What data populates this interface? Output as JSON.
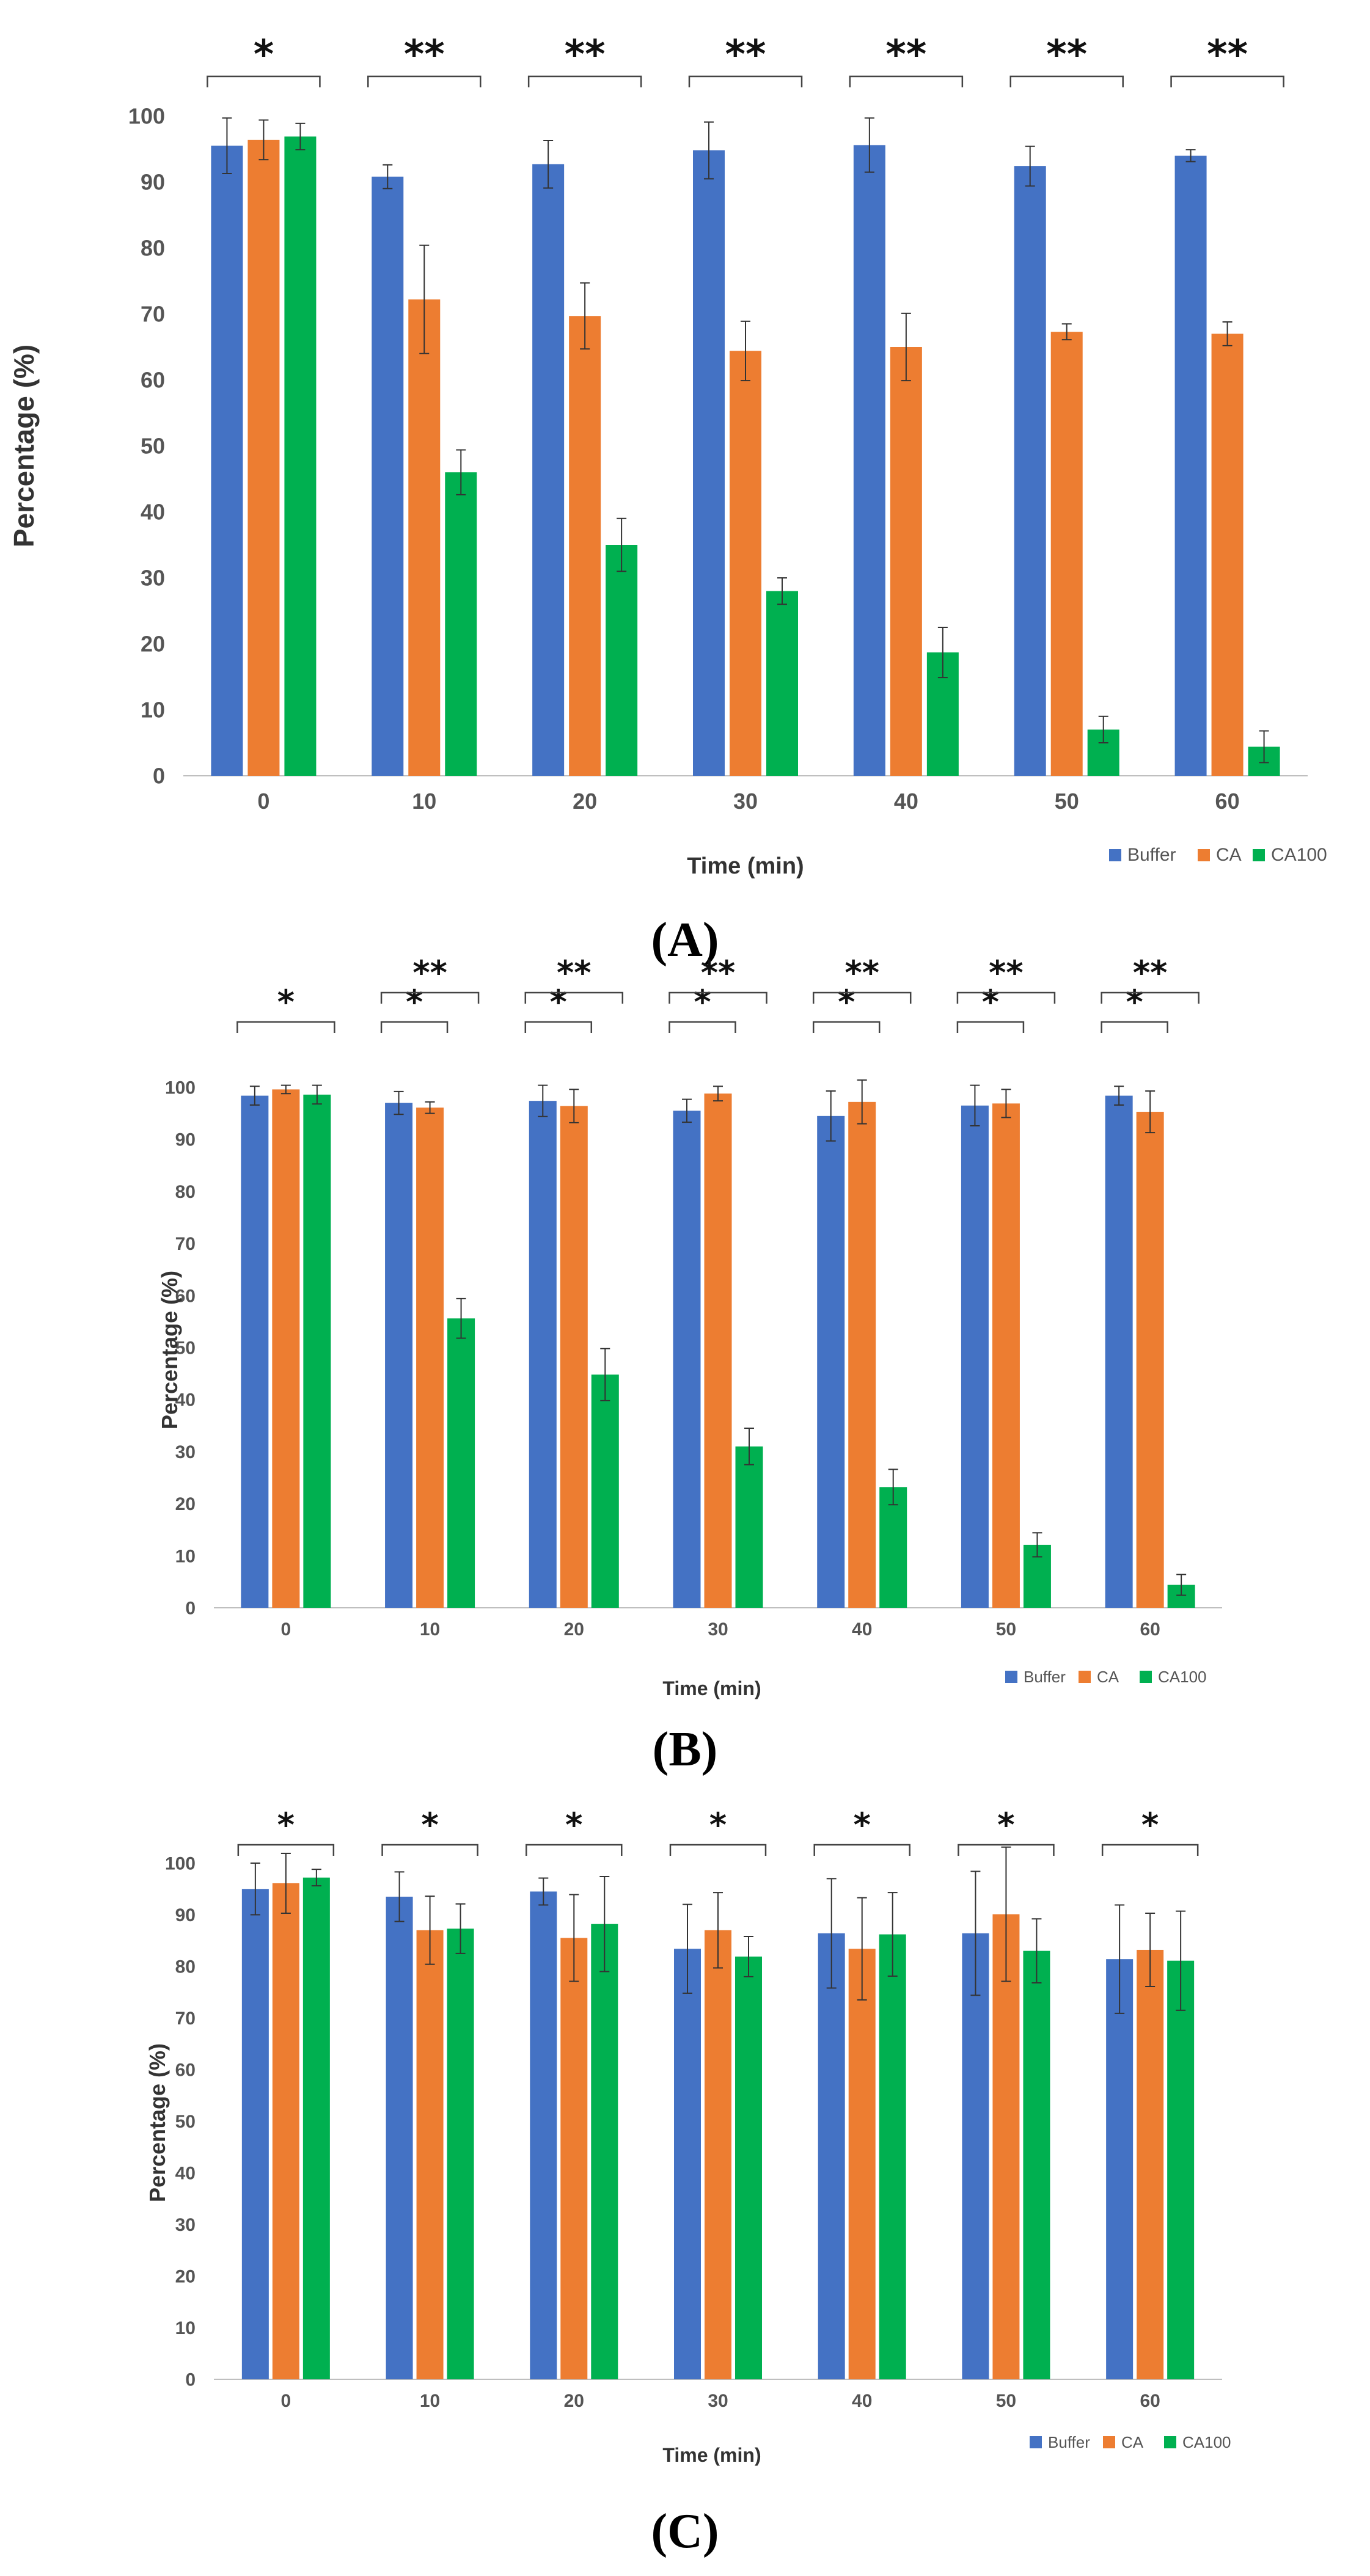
{
  "chart_data": [
    {
      "type": "bar",
      "panel_label": "(A)",
      "categories": [
        "0",
        "10",
        "20",
        "30",
        "40",
        "50",
        "60"
      ],
      "xlabel": "Time (min)",
      "ylabel": "Percentage (%)",
      "ylim": [
        0,
        100
      ],
      "yticks": [
        "0",
        "10",
        "20",
        "30",
        "40",
        "50",
        "60",
        "70",
        "80",
        "90",
        "100"
      ],
      "grid": false,
      "legend_position": "bottom-right",
      "series": [
        {
          "name": "Buffer",
          "color": "#4472C4",
          "values": [
            95.5,
            90.8,
            92.7,
            94.8,
            95.6,
            92.4,
            94.0
          ],
          "errors": [
            4.2,
            1.8,
            3.6,
            4.3,
            4.1,
            3.0,
            0.9
          ]
        },
        {
          "name": "CA",
          "color": "#ED7D31",
          "values": [
            96.4,
            72.2,
            69.7,
            64.4,
            65.0,
            67.3,
            67.0
          ],
          "errors": [
            3.0,
            8.2,
            5.0,
            4.5,
            5.1,
            1.2,
            1.8
          ]
        },
        {
          "name": "CA100",
          "color": "#00B050",
          "values": [
            96.9,
            46.0,
            35.0,
            28.0,
            18.7,
            7.0,
            4.4
          ],
          "errors": [
            2.0,
            3.4,
            4.0,
            2.0,
            3.8,
            2.0,
            2.4
          ]
        }
      ],
      "significance": [
        {
          "label": "*",
          "from": "Buffer",
          "to": "CA100",
          "row": 0
        },
        {
          "label": "**",
          "from": "Buffer",
          "to": "CA100",
          "row": 0
        },
        {
          "label": "**",
          "from": "Buffer",
          "to": "CA100",
          "row": 0
        },
        {
          "label": "**",
          "from": "Buffer",
          "to": "CA100",
          "row": 0
        },
        {
          "label": "**",
          "from": "Buffer",
          "to": "CA100",
          "row": 0
        },
        {
          "label": "**",
          "from": "Buffer",
          "to": "CA100",
          "row": 0
        },
        {
          "label": "**",
          "from": "Buffer",
          "to": "CA100",
          "row": 0
        }
      ]
    },
    {
      "type": "bar",
      "panel_label": "(B)",
      "categories": [
        "0",
        "10",
        "20",
        "30",
        "40",
        "50",
        "60"
      ],
      "xlabel": "Time (min)",
      "ylabel": "Percentage (%)",
      "ylim": [
        0,
        100
      ],
      "yticks": [
        "0",
        "10",
        "20",
        "30",
        "40",
        "50",
        "60",
        "70",
        "80",
        "90",
        "100"
      ],
      "grid": false,
      "legend_position": "bottom-right",
      "series": [
        {
          "name": "Buffer",
          "color": "#4472C4",
          "values": [
            98.4,
            97.0,
            97.4,
            95.5,
            94.5,
            96.5,
            98.4
          ],
          "errors": [
            1.8,
            2.2,
            3.0,
            2.2,
            4.8,
            3.9,
            1.8
          ]
        },
        {
          "name": "CA",
          "color": "#ED7D31",
          "values": [
            99.6,
            96.1,
            96.4,
            98.8,
            97.2,
            96.9,
            95.3
          ],
          "errors": [
            0.8,
            1.1,
            3.2,
            1.4,
            4.2,
            2.7,
            4.0
          ]
        },
        {
          "name": "CA100",
          "color": "#00B050",
          "values": [
            98.6,
            55.6,
            44.8,
            31.0,
            23.2,
            12.1,
            4.4
          ],
          "errors": [
            1.8,
            3.8,
            5.0,
            3.5,
            3.4,
            2.3,
            2.0
          ]
        }
      ],
      "significance": [
        {
          "label": "*",
          "from": "Buffer",
          "to": "CA100",
          "row": 0
        },
        {
          "label": "*",
          "from": "Buffer",
          "to": "CA",
          "row": 0
        },
        {
          "label": "**",
          "from": "Buffer",
          "to": "CA100",
          "row": 1
        },
        {
          "label": "*",
          "from": "Buffer",
          "to": "CA",
          "row": 0
        },
        {
          "label": "**",
          "from": "Buffer",
          "to": "CA100",
          "row": 1
        },
        {
          "label": "*",
          "from": "Buffer",
          "to": "CA",
          "row": 0
        },
        {
          "label": "**",
          "from": "Buffer",
          "to": "CA100",
          "row": 1
        },
        {
          "label": "*",
          "from": "Buffer",
          "to": "CA",
          "row": 0
        },
        {
          "label": "**",
          "from": "Buffer",
          "to": "CA100",
          "row": 1
        },
        {
          "label": "*",
          "from": "Buffer",
          "to": "CA",
          "row": 0
        },
        {
          "label": "**",
          "from": "Buffer",
          "to": "CA100",
          "row": 1
        },
        {
          "label": "*",
          "from": "Buffer",
          "to": "CA",
          "row": 0
        },
        {
          "label": "**",
          "from": "Buffer",
          "to": "CA100",
          "row": 1
        }
      ],
      "significance_groups": [
        0,
        1,
        1,
        2,
        2,
        3,
        3,
        4,
        4,
        5,
        5,
        6,
        6
      ]
    },
    {
      "type": "bar",
      "panel_label": "(C)",
      "categories": [
        "0",
        "10",
        "20",
        "30",
        "40",
        "50",
        "60"
      ],
      "xlabel": "Time (min)",
      "ylabel": "Percentage (%)",
      "ylim": [
        0,
        100
      ],
      "yticks": [
        "0",
        "10",
        "20",
        "30",
        "40",
        "50",
        "60",
        "70",
        "80",
        "90",
        "100"
      ],
      "grid": false,
      "legend_position": "bottom-right",
      "series": [
        {
          "name": "Buffer",
          "color": "#4472C4",
          "values": [
            95.0,
            93.5,
            94.5,
            83.4,
            86.4,
            86.4,
            81.4
          ],
          "errors": [
            5.0,
            4.8,
            2.6,
            8.6,
            10.6,
            12.0,
            10.5
          ]
        },
        {
          "name": "CA",
          "color": "#ED7D31",
          "values": [
            96.1,
            87.0,
            85.5,
            87.0,
            83.4,
            90.1,
            83.2
          ],
          "errors": [
            5.8,
            6.6,
            8.4,
            7.3,
            9.9,
            13.0,
            7.1
          ]
        },
        {
          "name": "CA100",
          "color": "#00B050",
          "values": [
            97.2,
            87.3,
            88.2,
            81.9,
            86.2,
            83.0,
            81.1
          ],
          "errors": [
            1.6,
            4.8,
            9.2,
            3.9,
            8.1,
            6.2,
            9.6
          ]
        }
      ],
      "significance": [
        {
          "label": "*",
          "from": "Buffer",
          "to": "CA100",
          "row": 0
        },
        {
          "label": "*",
          "from": "Buffer",
          "to": "CA100",
          "row": 0
        },
        {
          "label": "*",
          "from": "Buffer",
          "to": "CA100",
          "row": 0
        },
        {
          "label": "*",
          "from": "Buffer",
          "to": "CA100",
          "row": 0
        },
        {
          "label": "*",
          "from": "Buffer",
          "to": "CA100",
          "row": 0
        },
        {
          "label": "*",
          "from": "Buffer",
          "to": "CA100",
          "row": 0
        },
        {
          "label": "*",
          "from": "Buffer",
          "to": "CA100",
          "row": 0
        }
      ]
    }
  ]
}
